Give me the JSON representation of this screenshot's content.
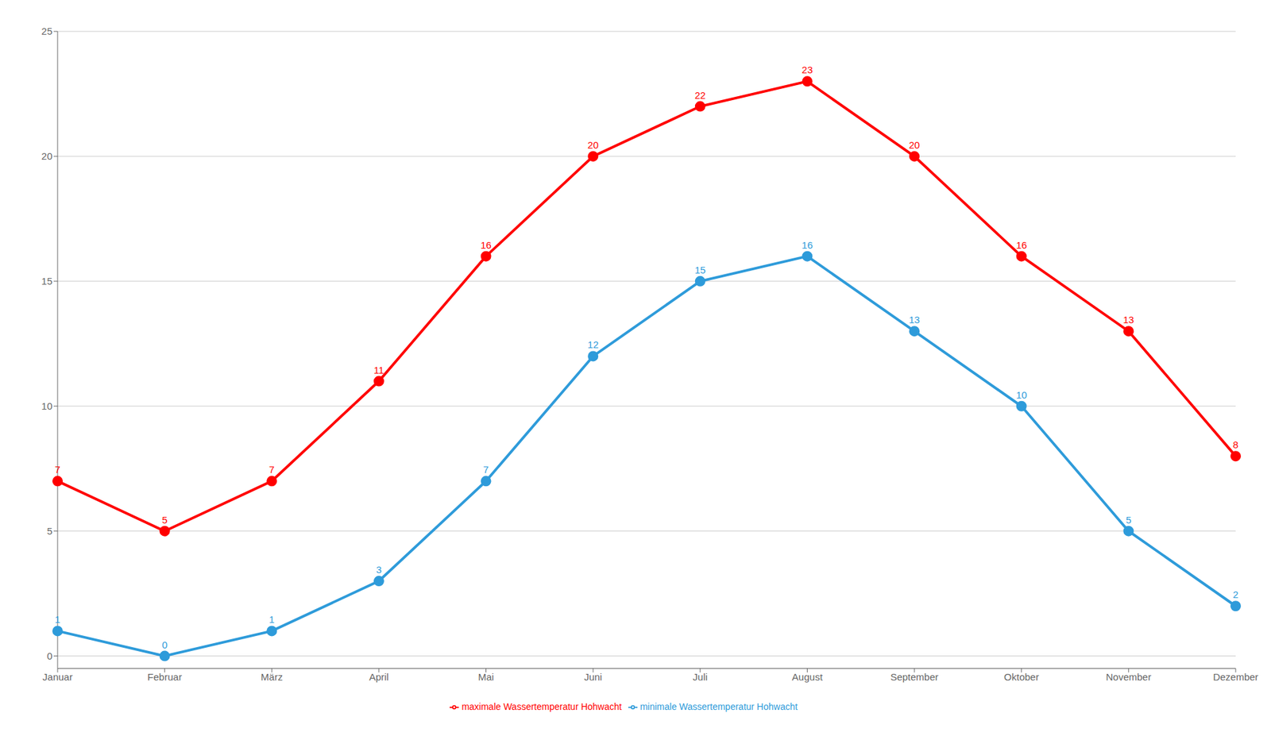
{
  "chart_data": {
    "type": "line",
    "categories": [
      "Januar",
      "Februar",
      "März",
      "April",
      "Mai",
      "Juni",
      "Juli",
      "August",
      "September",
      "Oktober",
      "November",
      "Dezember"
    ],
    "series": [
      {
        "name": "minimale Wassertemperatur Hohwacht",
        "color": "#2E9BDA",
        "values": [
          1,
          0,
          1,
          3,
          7,
          12,
          15,
          16,
          13,
          10,
          5,
          2
        ],
        "marker": "circle",
        "line_style": "solid"
      },
      {
        "name": "maximale Wassertemperatur Hohwacht",
        "color": "#FF0000",
        "values": [
          7,
          5,
          7,
          11,
          16,
          20,
          22,
          23,
          20,
          16,
          13,
          8
        ],
        "marker": "circle",
        "line_style": "solid"
      }
    ],
    "ylim": [
      -0.5,
      25
    ],
    "yticks": [
      0,
      5,
      10,
      15,
      20,
      25
    ],
    "grid": true,
    "legend": "bottom",
    "data_labels": true
  }
}
